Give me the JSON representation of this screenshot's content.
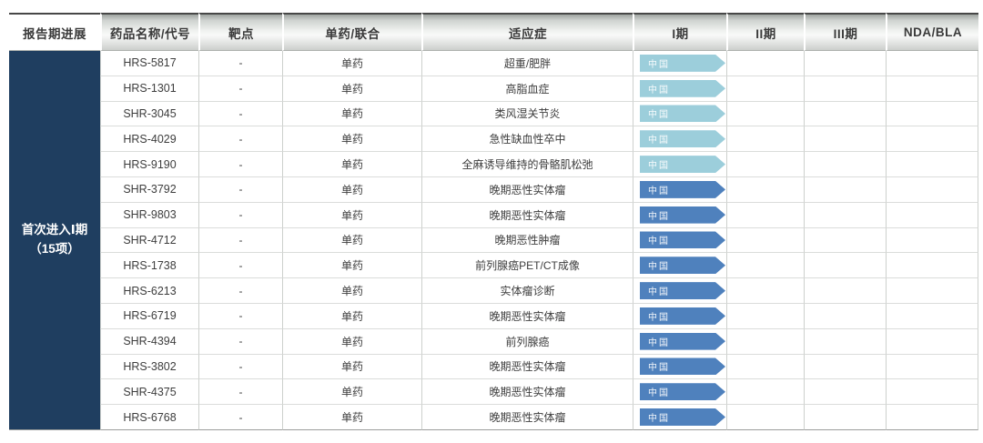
{
  "table": {
    "headers": [
      "报告期进展",
      "药品名称/代号",
      "靶点",
      "单药/联合",
      "适应症",
      "I期",
      "II期",
      "III期",
      "NDA/BLA"
    ],
    "sidebar_label": "首次进入Ⅰ期\n（15项）"
  },
  "rows": [
    {
      "code": "HRS-5817",
      "target": "-",
      "mono_combo": "单药",
      "indication": "超重/肥胖",
      "phase1": {
        "region": "中国",
        "variant": "light"
      }
    },
    {
      "code": "HRS-1301",
      "target": "-",
      "mono_combo": "单药",
      "indication": "高脂血症",
      "phase1": {
        "region": "中国",
        "variant": "light"
      }
    },
    {
      "code": "SHR-3045",
      "target": "-",
      "mono_combo": "单药",
      "indication": "类风湿关节炎",
      "phase1": {
        "region": "中国",
        "variant": "light"
      }
    },
    {
      "code": "HRS-4029",
      "target": "-",
      "mono_combo": "单药",
      "indication": "急性缺血性卒中",
      "phase1": {
        "region": "中国",
        "variant": "light"
      }
    },
    {
      "code": "HRS-9190",
      "target": "-",
      "mono_combo": "单药",
      "indication": "全麻诱导维持的骨骼肌松弛",
      "phase1": {
        "region": "中国",
        "variant": "light"
      }
    },
    {
      "code": "SHR-3792",
      "target": "-",
      "mono_combo": "单药",
      "indication": "晚期恶性实体瘤",
      "phase1": {
        "region": "中国",
        "variant": "dark"
      }
    },
    {
      "code": "SHR-9803",
      "target": "-",
      "mono_combo": "单药",
      "indication": "晚期恶性实体瘤",
      "phase1": {
        "region": "中国",
        "variant": "dark"
      }
    },
    {
      "code": "SHR-4712",
      "target": "-",
      "mono_combo": "单药",
      "indication": "晚期恶性肿瘤",
      "phase1": {
        "region": "中国",
        "variant": "dark"
      }
    },
    {
      "code": "HRS-1738",
      "target": "-",
      "mono_combo": "单药",
      "indication": "前列腺癌PET/CT成像",
      "phase1": {
        "region": "中国",
        "variant": "dark"
      }
    },
    {
      "code": "HRS-6213",
      "target": "-",
      "mono_combo": "单药",
      "indication": "实体瘤诊断",
      "phase1": {
        "region": "中国",
        "variant": "dark"
      }
    },
    {
      "code": "HRS-6719",
      "target": "-",
      "mono_combo": "单药",
      "indication": "晚期恶性实体瘤",
      "phase1": {
        "region": "中国",
        "variant": "dark"
      }
    },
    {
      "code": "SHR-4394",
      "target": "-",
      "mono_combo": "单药",
      "indication": "前列腺癌",
      "phase1": {
        "region": "中国",
        "variant": "dark"
      }
    },
    {
      "code": "HRS-3802",
      "target": "-",
      "mono_combo": "单药",
      "indication": "晚期恶性实体瘤",
      "phase1": {
        "region": "中国",
        "variant": "dark"
      }
    },
    {
      "code": "SHR-4375",
      "target": "-",
      "mono_combo": "单药",
      "indication": "晚期恶性实体瘤",
      "phase1": {
        "region": "中国",
        "variant": "dark"
      }
    },
    {
      "code": "HRS-6768",
      "target": "-",
      "mono_combo": "单药",
      "indication": "晚期恶性实体瘤",
      "phase1": {
        "region": "中国",
        "variant": "dark"
      }
    }
  ],
  "colors": {
    "sidebar_bg": "#1f3e60",
    "arrow_light": "#9ccedb",
    "arrow_dark": "#4f81bd"
  }
}
